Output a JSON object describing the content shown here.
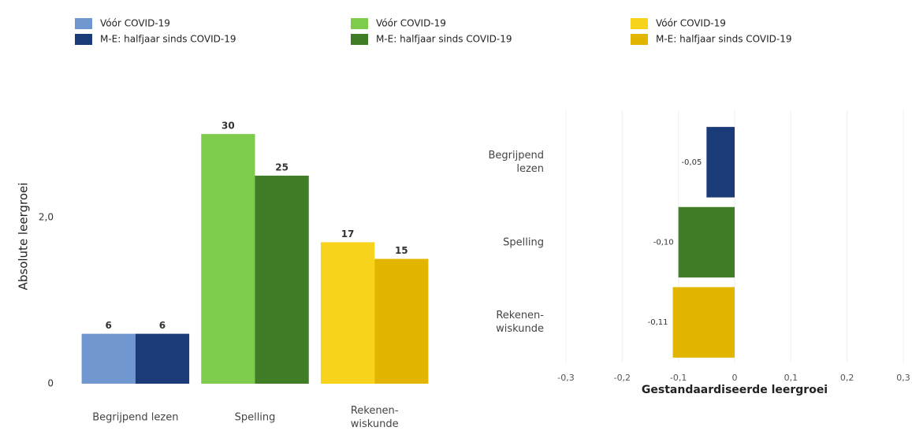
{
  "chart_data": [
    {
      "type": "bar",
      "y_label": "Absolute leergroei",
      "categories": [
        "Begrijpend lezen",
        "Spelling",
        "Rekenen-wiskunde"
      ],
      "series": [
        {
          "name": "Vóór COVID-19",
          "colors": [
            "#7097cf",
            "#7dcc4b",
            "#f8d31c"
          ],
          "values": [
            6,
            30,
            17
          ]
        },
        {
          "name": "M-E: halfjaar sinds COVID-19",
          "colors": [
            "#1b3a78",
            "#3f7d26",
            "#e2b600"
          ],
          "values": [
            6,
            25,
            15
          ]
        }
      ],
      "ylim": [
        0,
        32
      ],
      "yticks": [
        0,
        {
          "value": 20,
          "label": "2,0"
        }
      ],
      "grid": false
    },
    {
      "type": "barh",
      "x_label": "Gestandaardiseerde leergroei",
      "categories": [
        "Begrijpend lezen",
        "Spelling",
        "Rekenen-wiskunde"
      ],
      "values": [
        -0.05,
        -0.1,
        -0.11
      ],
      "value_labels": [
        "-0,05",
        "-0,10",
        "-0,11"
      ],
      "colors": [
        "#1b3a78",
        "#3f7d26",
        "#e2b600"
      ],
      "xlim": [
        -0.3,
        0.3
      ],
      "xticks": [
        {
          "value": -0.3,
          "label": "-0,3"
        },
        {
          "value": -0.2,
          "label": "-0,2"
        },
        {
          "value": -0.1,
          "label": "-0,1"
        },
        0,
        {
          "value": 0.1,
          "label": "0,1"
        },
        {
          "value": 0.2,
          "label": "0,2"
        },
        {
          "value": 0.3,
          "label": "0,3"
        }
      ],
      "grid": true
    }
  ]
}
